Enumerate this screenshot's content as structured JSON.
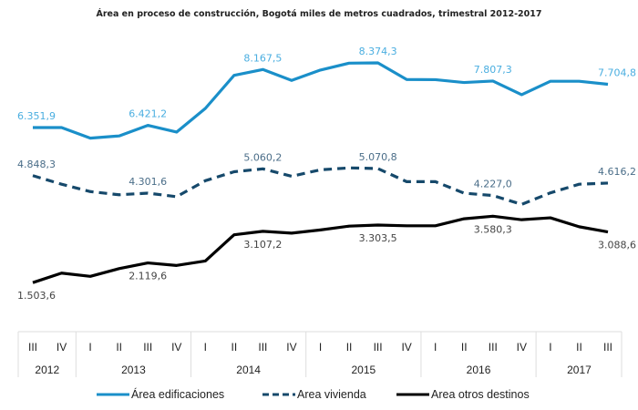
{
  "chart_data": {
    "type": "line",
    "title": "Área en proceso de construcción, Bogotá miles de metros cuadrados, trimestral 2012-2017",
    "xlabel": "",
    "ylabel": "",
    "grid": false,
    "legend_position": "bottom",
    "years": [
      {
        "label": "2012",
        "quarters": 2
      },
      {
        "label": "2013",
        "quarters": 4
      },
      {
        "label": "2014",
        "quarters": 4
      },
      {
        "label": "2015",
        "quarters": 4
      },
      {
        "label": "2016",
        "quarters": 4
      },
      {
        "label": "2017",
        "quarters": 3
      }
    ],
    "categories": [
      "III",
      "IV",
      "I",
      "II",
      "III",
      "IV",
      "I",
      "II",
      "III",
      "IV",
      "I",
      "II",
      "III",
      "IV",
      "I",
      "II",
      "III",
      "IV",
      "I",
      "II",
      "III"
    ],
    "series": [
      {
        "name": "Área edificaciones",
        "color": "#1a8fc9",
        "label_color": "#4aaee0",
        "dash": false,
        "values": [
          6351.9,
          6352,
          6020,
          6090,
          6421.2,
          6210,
          6950,
          7985,
          8167.5,
          7825,
          8150,
          8366,
          8374.3,
          7855,
          7850,
          7760,
          7807.3,
          7380,
          7800,
          7800,
          7704.8
        ],
        "labels": [
          {
            "i": 0,
            "text": "6.351,9",
            "pos": "above"
          },
          {
            "i": 4,
            "text": "6.421,2",
            "pos": "above"
          },
          {
            "i": 8,
            "text": "8.167,5",
            "pos": "above"
          },
          {
            "i": 12,
            "text": "8.374,3",
            "pos": "above"
          },
          {
            "i": 16,
            "text": "7.807,3",
            "pos": "above"
          },
          {
            "i": 20,
            "text": "7.704,8",
            "pos": "above"
          }
        ]
      },
      {
        "name": "Area vivienda",
        "color": "#16496b",
        "label_color": "#4a6d88",
        "dash": true,
        "values": [
          4848.3,
          4580,
          4350,
          4250,
          4301.6,
          4190,
          4690,
          4970,
          5060.2,
          4830,
          5030,
          5090,
          5070.8,
          4660,
          4660,
          4300,
          4227.0,
          3950,
          4310,
          4580,
          4616.2
        ],
        "labels": [
          {
            "i": 0,
            "text": "4.848,3",
            "pos": "above"
          },
          {
            "i": 4,
            "text": "4.301,6",
            "pos": "above"
          },
          {
            "i": 8,
            "text": "5.060,2",
            "pos": "above"
          },
          {
            "i": 12,
            "text": "5.070,8",
            "pos": "above"
          },
          {
            "i": 16,
            "text": "4.227,0",
            "pos": "above"
          },
          {
            "i": 20,
            "text": "4.616,2",
            "pos": "above"
          }
        ]
      },
      {
        "name": "Area otros destinos",
        "color": "#000000",
        "label_color": "#444444",
        "dash": false,
        "values": [
          1503.6,
          1800,
          1700,
          1940,
          2119.6,
          2040,
          2180,
          3000,
          3107.2,
          3050,
          3150,
          3270,
          3303.5,
          3280,
          3280,
          3500,
          3580.3,
          3470,
          3530,
          3250,
          3088.6
        ],
        "labels": [
          {
            "i": 0,
            "text": "1.503,6",
            "pos": "below"
          },
          {
            "i": 4,
            "text": "2.119,6",
            "pos": "below"
          },
          {
            "i": 8,
            "text": "3.107,2",
            "pos": "below"
          },
          {
            "i": 12,
            "text": "3.303,5",
            "pos": "below"
          },
          {
            "i": 16,
            "text": "3.580,3",
            "pos": "below"
          },
          {
            "i": 20,
            "text": "3.088,6",
            "pos": "below"
          }
        ]
      }
    ]
  }
}
